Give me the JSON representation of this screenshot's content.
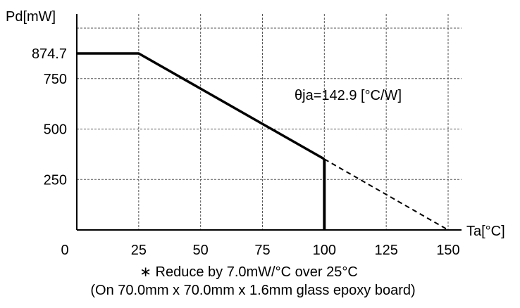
{
  "chart_data": {
    "type": "line",
    "ylabel": "Pd[mW]",
    "xlabel": "Ta[°C]",
    "xlim": [
      0,
      150
    ],
    "ylim": [
      0,
      1000
    ],
    "x_ticks": [
      0,
      25,
      50,
      75,
      100,
      125,
      150
    ],
    "y_ticks": [
      874.7,
      750,
      500,
      250
    ],
    "gridlines_y": [
      250,
      500,
      750,
      1000
    ],
    "gridlines_x": [
      25,
      50,
      75,
      100,
      125,
      150
    ],
    "grid": true,
    "series": [
      {
        "style": "solid",
        "points": [
          [
            0,
            874.7
          ],
          [
            25,
            874.7
          ],
          [
            100,
            350.9
          ]
        ]
      },
      {
        "style": "dashed",
        "points": [
          [
            100,
            350.9
          ],
          [
            150,
            0
          ]
        ]
      },
      {
        "style": "solid-vertical",
        "points": [
          [
            100,
            350.9
          ],
          [
            100,
            0
          ]
        ]
      }
    ],
    "annotation": {
      "text": "θja=142.9 [°C/W]",
      "x": 78,
      "y": 620
    }
  },
  "notes": {
    "line1": "∗ Reduce by 7.0mW/°C over 25°C",
    "line2": "(On 70.0mm x 70.0mm x 1.6mm glass epoxy board)"
  }
}
